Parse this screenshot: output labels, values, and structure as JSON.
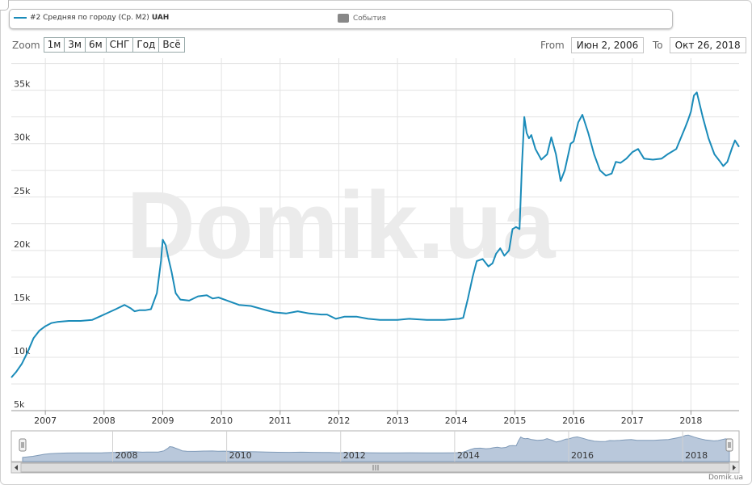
{
  "legend": {
    "series_label": "#2 Средняя по городу (Ср. М2)",
    "series_unit": "UAH",
    "events_label": "События"
  },
  "zoom": {
    "label": "Zoom",
    "buttons": [
      "1м",
      "3м",
      "6м",
      "СНГ",
      "Год",
      "Всё"
    ]
  },
  "range": {
    "from_label": "From",
    "from_value": "Июн 2, 2006",
    "to_label": "To",
    "to_value": "Окт 26, 2018"
  },
  "watermark": "Domik.ua",
  "credit": "Domik.ua",
  "colors": {
    "line": "#1a8bb9",
    "navigator_fill": "#b9c8db",
    "navigator_line": "#7f9ab8",
    "grid": "#e3e3e3",
    "events_swatch": "#888888"
  },
  "chart_data": {
    "type": "line",
    "title": "",
    "xlabel": "",
    "ylabel": "",
    "x_range": [
      2006.42,
      2018.82
    ],
    "ylim": [
      5000,
      38000
    ],
    "yticks": [
      5000,
      10000,
      15000,
      20000,
      25000,
      30000,
      35000
    ],
    "ytick_labels": [
      "5k",
      "10k",
      "15k",
      "20k",
      "25k",
      "30k",
      "35k"
    ],
    "xticks": [
      2007,
      2008,
      2009,
      2010,
      2011,
      2012,
      2013,
      2014,
      2015,
      2016,
      2017,
      2018
    ],
    "xtick_labels": [
      "2007",
      "2008",
      "2009",
      "2010",
      "2011",
      "2012",
      "2013",
      "2014",
      "2015",
      "2016",
      "2017",
      "2018"
    ],
    "navigator_ticks": [
      2008,
      2010,
      2012,
      2014,
      2016,
      2018
    ],
    "navigator_tick_labels": [
      "2008",
      "2010",
      "2012",
      "2014",
      "2016",
      "2018"
    ],
    "grid": true,
    "legend_position": "top",
    "series": [
      {
        "name": "#2 Средняя по городу (Ср. М2)",
        "x": [
          2006.42,
          2006.5,
          2006.6,
          2006.7,
          2006.8,
          2006.9,
          2007.0,
          2007.1,
          2007.2,
          2007.4,
          2007.6,
          2007.8,
          2008.0,
          2008.2,
          2008.35,
          2008.45,
          2008.52,
          2008.6,
          2008.7,
          2008.8,
          2008.9,
          2008.97,
          2009.0,
          2009.05,
          2009.1,
          2009.15,
          2009.22,
          2009.3,
          2009.45,
          2009.6,
          2009.75,
          2009.85,
          2009.95,
          2010.1,
          2010.3,
          2010.5,
          2010.7,
          2010.9,
          2011.1,
          2011.3,
          2011.5,
          2011.7,
          2011.8,
          2011.95,
          2012.1,
          2012.3,
          2012.5,
          2012.7,
          2012.9,
          2013.0,
          2013.2,
          2013.5,
          2013.8,
          2014.05,
          2014.12,
          2014.2,
          2014.28,
          2014.35,
          2014.45,
          2014.55,
          2014.62,
          2014.68,
          2014.75,
          2014.82,
          2014.9,
          2014.96,
          2015.02,
          2015.08,
          2015.12,
          2015.16,
          2015.2,
          2015.24,
          2015.28,
          2015.35,
          2015.45,
          2015.55,
          2015.62,
          2015.7,
          2015.78,
          2015.85,
          2015.95,
          2016.0,
          2016.08,
          2016.15,
          2016.25,
          2016.35,
          2016.45,
          2016.55,
          2016.65,
          2016.72,
          2016.8,
          2016.9,
          2017.0,
          2017.1,
          2017.2,
          2017.35,
          2017.5,
          2017.6,
          2017.75,
          2017.9,
          2017.95,
          2018.0,
          2018.05,
          2018.1,
          2018.2,
          2018.3,
          2018.4,
          2018.5,
          2018.55,
          2018.62,
          2018.7,
          2018.75,
          2018.82
        ],
        "y": [
          8100,
          8600,
          9400,
          10500,
          11800,
          12500,
          12900,
          13200,
          13300,
          13400,
          13400,
          13500,
          14000,
          14500,
          14900,
          14600,
          14300,
          14400,
          14400,
          14500,
          16000,
          19000,
          21000,
          20500,
          19200,
          18000,
          16000,
          15400,
          15300,
          15700,
          15800,
          15500,
          15600,
          15300,
          14900,
          14800,
          14500,
          14200,
          14100,
          14300,
          14100,
          14000,
          14000,
          13600,
          13800,
          13800,
          13600,
          13500,
          13500,
          13500,
          13600,
          13500,
          13500,
          13600,
          13700,
          15500,
          17500,
          19000,
          19200,
          18500,
          18800,
          19700,
          20200,
          19500,
          20000,
          22000,
          22200,
          22000,
          28000,
          32500,
          31000,
          30500,
          30800,
          29500,
          28500,
          29000,
          30600,
          29000,
          26500,
          27500,
          30000,
          30200,
          32000,
          32700,
          31000,
          29000,
          27500,
          27000,
          27200,
          28300,
          28200,
          28600,
          29200,
          29500,
          28600,
          28500,
          28600,
          29000,
          29500,
          31500,
          32200,
          33000,
          34500,
          34800,
          32500,
          30500,
          29000,
          28300,
          27900,
          28300,
          29600,
          30300,
          29700
        ]
      }
    ]
  }
}
